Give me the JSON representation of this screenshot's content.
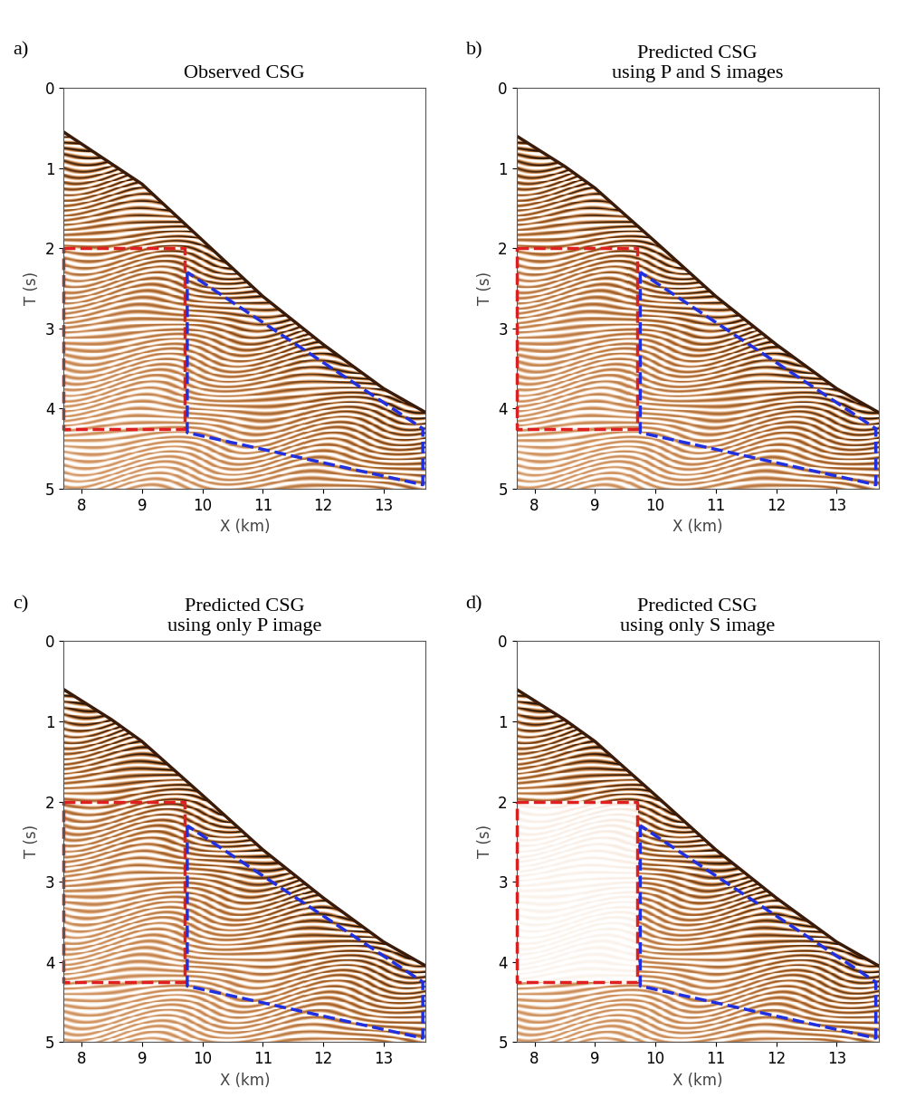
{
  "chart_data": [
    {
      "type": "image",
      "panel": "a)",
      "title": "Observed CSG",
      "xlabel": "X (km)",
      "ylabel": "T (s)",
      "xlim": [
        7.7,
        13.7
      ],
      "ylim": [
        5,
        0
      ],
      "xticks": [
        8,
        9,
        10,
        11,
        12,
        13
      ],
      "yticks": [
        0,
        1,
        2,
        3,
        4,
        5
      ],
      "first_arrival": {
        "x": [
          7.7,
          8.5,
          9.0,
          10.0,
          11.0,
          12.0,
          13.0,
          13.7
        ],
        "T": [
          0.55,
          0.95,
          1.2,
          1.9,
          2.6,
          3.2,
          3.75,
          4.05
        ]
      },
      "boxes": [
        {
          "color": "#e02020",
          "line_style": "dashed",
          "x": [
            7.7,
            9.7,
            9.7,
            7.7,
            7.7
          ],
          "T": [
            2.0,
            2.0,
            4.25,
            4.25,
            2.0
          ],
          "filled": true
        },
        {
          "color": "#2030e0",
          "line_style": "dashed",
          "x": [
            9.75,
            9.75,
            13.65,
            13.65,
            9.75
          ],
          "T": [
            2.3,
            4.3,
            4.95,
            4.25,
            2.3
          ],
          "filled": true
        }
      ]
    },
    {
      "type": "image",
      "panel": "b)",
      "title": "Predicted CSG\nusing P and S images",
      "xlabel": "X (km)",
      "ylabel": "T (s)",
      "xlim": [
        7.7,
        13.7
      ],
      "ylim": [
        5,
        0
      ],
      "xticks": [
        8,
        9,
        10,
        11,
        12,
        13
      ],
      "yticks": [
        0,
        1,
        2,
        3,
        4,
        5
      ],
      "first_arrival": {
        "x": [
          7.7,
          8.5,
          9.0,
          10.0,
          11.0,
          12.0,
          13.0,
          13.7
        ],
        "T": [
          0.6,
          0.98,
          1.25,
          1.92,
          2.6,
          3.2,
          3.75,
          4.05
        ]
      },
      "boxes": [
        {
          "color": "#e02020",
          "line_style": "dashed",
          "x": [
            7.7,
            9.7,
            9.7,
            7.7,
            7.7
          ],
          "T": [
            2.0,
            2.0,
            4.25,
            4.25,
            2.0
          ],
          "filled": true
        },
        {
          "color": "#2030e0",
          "line_style": "dashed",
          "x": [
            9.75,
            9.75,
            13.65,
            13.65,
            9.75
          ],
          "T": [
            2.3,
            4.3,
            4.95,
            4.25,
            2.3
          ],
          "filled": true
        }
      ]
    },
    {
      "type": "image",
      "panel": "c)",
      "title": "Predicted CSG\nusing only P image",
      "xlabel": "X (km)",
      "ylabel": "T (s)",
      "xlim": [
        7.7,
        13.7
      ],
      "ylim": [
        5,
        0
      ],
      "xticks": [
        8,
        9,
        10,
        11,
        12,
        13
      ],
      "yticks": [
        0,
        1,
        2,
        3,
        4,
        5
      ],
      "first_arrival": {
        "x": [
          7.7,
          8.5,
          9.0,
          10.0,
          11.0,
          12.0,
          13.0,
          13.7
        ],
        "T": [
          0.6,
          0.98,
          1.25,
          1.92,
          2.6,
          3.2,
          3.75,
          4.05
        ]
      },
      "boxes": [
        {
          "color": "#e02020",
          "line_style": "dashed",
          "x": [
            7.7,
            9.7,
            9.7,
            7.7,
            7.7
          ],
          "T": [
            2.0,
            2.0,
            4.25,
            4.25,
            2.0
          ],
          "filled": true
        },
        {
          "color": "#2030e0",
          "line_style": "dashed",
          "x": [
            9.75,
            9.75,
            13.65,
            13.65,
            9.75
          ],
          "T": [
            2.3,
            4.3,
            4.95,
            4.25,
            2.3
          ],
          "filled": true
        }
      ]
    },
    {
      "type": "image",
      "panel": "d)",
      "title": "Predicted CSG\nusing only S image",
      "xlabel": "X (km)",
      "ylabel": "T (s)",
      "xlim": [
        7.7,
        13.7
      ],
      "ylim": [
        5,
        0
      ],
      "xticks": [
        8,
        9,
        10,
        11,
        12,
        13
      ],
      "yticks": [
        0,
        1,
        2,
        3,
        4,
        5
      ],
      "first_arrival": {
        "x": [
          7.7,
          8.5,
          9.0,
          10.0,
          11.0,
          12.0,
          13.0,
          13.7
        ],
        "T": [
          0.6,
          0.98,
          1.25,
          1.92,
          2.6,
          3.2,
          3.75,
          4.05
        ]
      },
      "boxes": [
        {
          "color": "#e02020",
          "line_style": "dashed",
          "x": [
            7.7,
            9.7,
            9.7,
            7.7,
            7.7
          ],
          "T": [
            2.0,
            2.0,
            4.25,
            4.25,
            2.0
          ],
          "filled": false
        },
        {
          "color": "#2030e0",
          "line_style": "dashed",
          "x": [
            9.75,
            9.75,
            13.65,
            13.65,
            9.75
          ],
          "T": [
            2.3,
            4.3,
            4.95,
            4.25,
            2.3
          ],
          "filled": true
        }
      ]
    }
  ]
}
